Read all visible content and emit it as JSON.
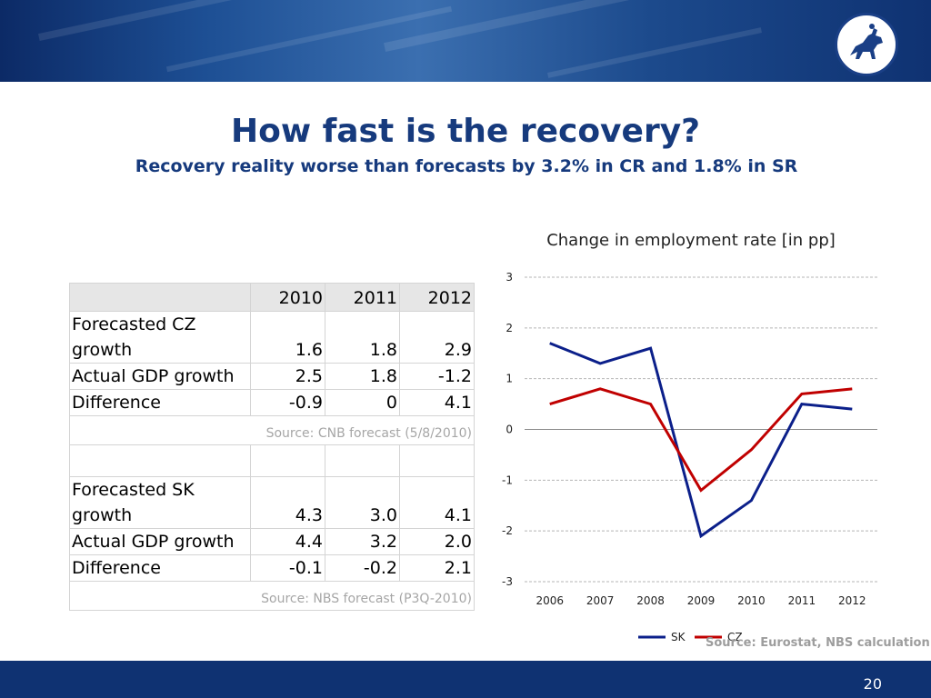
{
  "slide": {
    "title": "How fast is the recovery?",
    "subtitle": "Recovery reality worse than forecasts by 3.2% in CR and 1.8% in SR",
    "page_number": "20"
  },
  "table": {
    "years": [
      "2010",
      "2011",
      "2012"
    ],
    "cz_rows": [
      {
        "label": "Forecasted CZ growth",
        "values": [
          "1.6",
          "1.8",
          "2.9"
        ]
      },
      {
        "label": "Actual GDP growth",
        "values": [
          "2.5",
          "1.8",
          "-1.2"
        ]
      },
      {
        "label": "Difference",
        "values": [
          "-0.9",
          "0",
          "4.1"
        ]
      }
    ],
    "cz_source": "Source: CNB forecast (5/8/2010)",
    "sk_rows": [
      {
        "label": "Forecasted SK growth",
        "values": [
          "4.3",
          "3.0",
          "4.1"
        ]
      },
      {
        "label": "Actual GDP growth",
        "values": [
          "4.4",
          "3.2",
          "2.0"
        ]
      },
      {
        "label": "Difference",
        "values": [
          "-0.1",
          "-0.2",
          "2.1"
        ]
      }
    ],
    "sk_source": "Source: NBS forecast (P3Q-2010)"
  },
  "chart_data": {
    "type": "line",
    "title": "Change in employment rate [in pp]",
    "x": [
      "2006",
      "2007",
      "2008",
      "2009",
      "2010",
      "2011",
      "2012"
    ],
    "series": [
      {
        "name": "SK",
        "color": "#0b1f8a",
        "values": [
          1.7,
          1.3,
          1.6,
          -2.1,
          -1.4,
          0.5,
          0.4
        ]
      },
      {
        "name": "CZ",
        "color": "#c00000",
        "values": [
          0.5,
          0.8,
          0.5,
          -1.2,
          -0.4,
          0.7,
          0.8
        ]
      }
    ],
    "ylim": [
      -3,
      3
    ],
    "yticks": [
      "3",
      "2",
      "1",
      "0",
      "-1",
      "-2",
      "-3"
    ],
    "grid": true,
    "legend": "bottom",
    "source": "Source: Eurostat, NBS calculation"
  }
}
